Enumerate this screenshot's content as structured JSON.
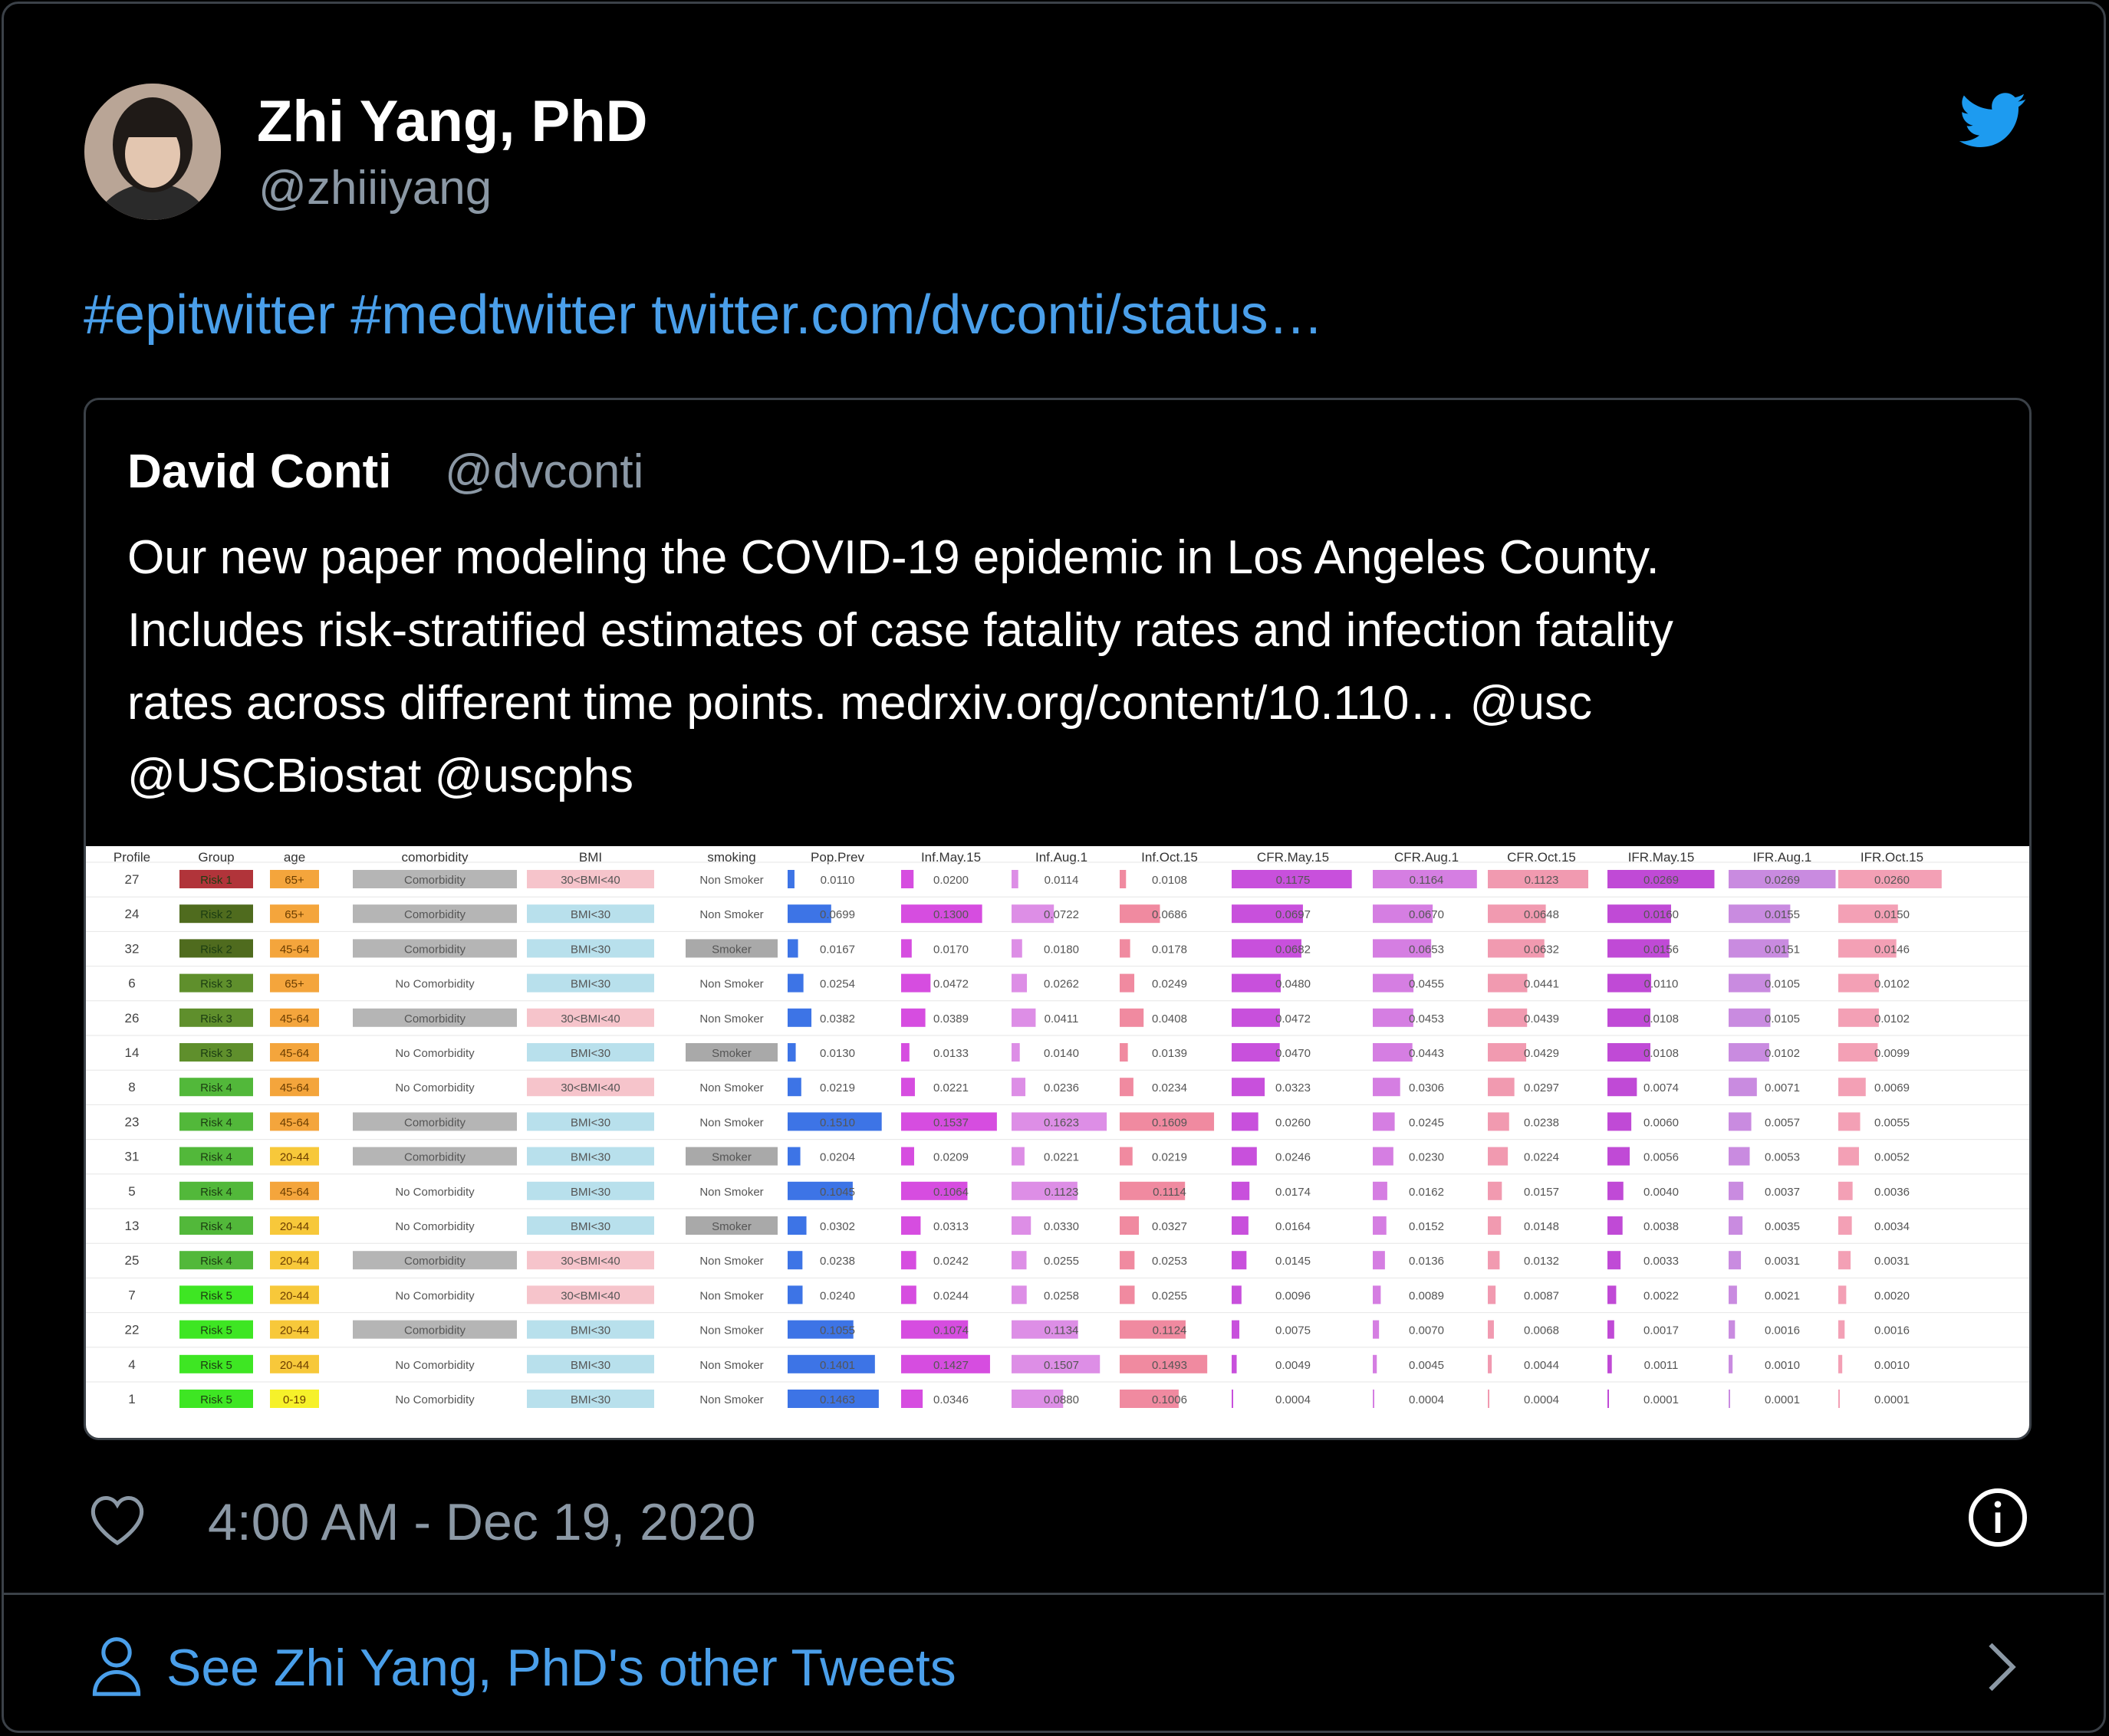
{
  "author": {
    "name": "Zhi Yang, PhD",
    "handle": "@zhiiiyang"
  },
  "tweet": {
    "text": "#epitwitter #medtwitter twitter.com/dvconti/status…"
  },
  "quote": {
    "name": "David Conti",
    "handle": "@dvconti",
    "lines": [
      "Our new paper modeling the COVID-19 epidemic in Los Angeles County.",
      "Includes risk-stratified estimates of case fatality rates and infection fatality",
      "rates across different time points. medrxiv.org/content/10.110…  @usc",
      "@USCBiostat @uscphs"
    ]
  },
  "table": {
    "headers": [
      "Profile",
      "Group",
      "age",
      "comorbidity",
      "BMI",
      "smoking",
      "Pop.Prev",
      "Inf.May.15",
      "Inf.Aug.1",
      "Inf.Oct.15",
      "CFR.May.15",
      "CFR.Aug.1",
      "CFR.Oct.15",
      "IFR.May.15",
      "IFR.Aug.1",
      "IFR.Oct.15"
    ],
    "rows": [
      [
        "27",
        "Risk 1",
        "65+",
        "Comorbidity",
        "30<BMI<40",
        "Non Smoker",
        "0.0110",
        "0.0200",
        "0.0114",
        "0.0108",
        "0.1175",
        "0.1164",
        "0.1123",
        "0.0269",
        "0.0269",
        "0.0260"
      ],
      [
        "24",
        "Risk 2",
        "65+",
        "Comorbidity",
        "BMI<30",
        "Non Smoker",
        "0.0699",
        "0.1300",
        "0.0722",
        "0.0686",
        "0.0697",
        "0.0670",
        "0.0648",
        "0.0160",
        "0.0155",
        "0.0150"
      ],
      [
        "32",
        "Risk 2",
        "45-64",
        "Comorbidity",
        "BMI<30",
        "Smoker",
        "0.0167",
        "0.0170",
        "0.0180",
        "0.0178",
        "0.0682",
        "0.0653",
        "0.0632",
        "0.0156",
        "0.0151",
        "0.0146"
      ],
      [
        "6",
        "Risk 3",
        "65+",
        "No Comorbidity",
        "BMI<30",
        "Non Smoker",
        "0.0254",
        "0.0472",
        "0.0262",
        "0.0249",
        "0.0480",
        "0.0455",
        "0.0441",
        "0.0110",
        "0.0105",
        "0.0102"
      ],
      [
        "26",
        "Risk 3",
        "45-64",
        "Comorbidity",
        "30<BMI<40",
        "Non Smoker",
        "0.0382",
        "0.0389",
        "0.0411",
        "0.0408",
        "0.0472",
        "0.0453",
        "0.0439",
        "0.0108",
        "0.0105",
        "0.0102"
      ],
      [
        "14",
        "Risk 3",
        "45-64",
        "No Comorbidity",
        "BMI<30",
        "Smoker",
        "0.0130",
        "0.0133",
        "0.0140",
        "0.0139",
        "0.0470",
        "0.0443",
        "0.0429",
        "0.0108",
        "0.0102",
        "0.0099"
      ],
      [
        "8",
        "Risk 4",
        "45-64",
        "No Comorbidity",
        "30<BMI<40",
        "Non Smoker",
        "0.0219",
        "0.0221",
        "0.0236",
        "0.0234",
        "0.0323",
        "0.0306",
        "0.0297",
        "0.0074",
        "0.0071",
        "0.0069"
      ],
      [
        "23",
        "Risk 4",
        "45-64",
        "Comorbidity",
        "BMI<30",
        "Non Smoker",
        "0.1510",
        "0.1537",
        "0.1623",
        "0.1609",
        "0.0260",
        "0.0245",
        "0.0238",
        "0.0060",
        "0.0057",
        "0.0055"
      ],
      [
        "31",
        "Risk 4",
        "20-44",
        "Comorbidity",
        "BMI<30",
        "Smoker",
        "0.0204",
        "0.0209",
        "0.0221",
        "0.0219",
        "0.0246",
        "0.0230",
        "0.0224",
        "0.0056",
        "0.0053",
        "0.0052"
      ],
      [
        "5",
        "Risk 4",
        "45-64",
        "No Comorbidity",
        "BMI<30",
        "Non Smoker",
        "0.1045",
        "0.1064",
        "0.1123",
        "0.1114",
        "0.0174",
        "0.0162",
        "0.0157",
        "0.0040",
        "0.0037",
        "0.0036"
      ],
      [
        "13",
        "Risk 4",
        "20-44",
        "No Comorbidity",
        "BMI<30",
        "Smoker",
        "0.0302",
        "0.0313",
        "0.0330",
        "0.0327",
        "0.0164",
        "0.0152",
        "0.0148",
        "0.0038",
        "0.0035",
        "0.0034"
      ],
      [
        "25",
        "Risk 4",
        "20-44",
        "Comorbidity",
        "30<BMI<40",
        "Non Smoker",
        "0.0238",
        "0.0242",
        "0.0255",
        "0.0253",
        "0.0145",
        "0.0136",
        "0.0132",
        "0.0033",
        "0.0031",
        "0.0031"
      ],
      [
        "7",
        "Risk 5",
        "20-44",
        "No Comorbidity",
        "30<BMI<40",
        "Non Smoker",
        "0.0240",
        "0.0244",
        "0.0258",
        "0.0255",
        "0.0096",
        "0.0089",
        "0.0087",
        "0.0022",
        "0.0021",
        "0.0020"
      ],
      [
        "22",
        "Risk 5",
        "20-44",
        "Comorbidity",
        "BMI<30",
        "Non Smoker",
        "0.1055",
        "0.1074",
        "0.1134",
        "0.1124",
        "0.0075",
        "0.0070",
        "0.0068",
        "0.0017",
        "0.0016",
        "0.0016"
      ],
      [
        "4",
        "Risk 5",
        "20-44",
        "No Comorbidity",
        "BMI<30",
        "Non Smoker",
        "0.1401",
        "0.1427",
        "0.1507",
        "0.1493",
        "0.0049",
        "0.0045",
        "0.0044",
        "0.0011",
        "0.0010",
        "0.0010"
      ],
      [
        "1",
        "Risk 5",
        "0-19",
        "No Comorbidity",
        "BMI<30",
        "Non Smoker",
        "0.1463",
        "0.0346",
        "0.0880",
        "0.1006",
        "0.0004",
        "0.0004",
        "0.0004",
        "0.0001",
        "0.0001",
        "0.0001"
      ]
    ],
    "group_colors": {
      "Risk 1": "#b1343a",
      "Risk 2": "#4f6b1e",
      "Risk 3": "#5f8f2c",
      "Risk 4": "#52b83a",
      "Risk 5": "#3ee623"
    },
    "age_colors": {
      "65+": "#f4a53c",
      "45-64": "#f4a53c",
      "20-44": "#f7c83a",
      "0-19": "#f6f12a"
    }
  },
  "footer": {
    "timestamp": "4:00 AM - Dec 19, 2020",
    "see_more": "See Zhi Yang, PhD's other Tweets"
  },
  "colors": {
    "link": "#4a9fea",
    "muted": "#8b98a5",
    "border": "#3b4148"
  },
  "icons": [
    "twitter-bird-icon",
    "heart-icon",
    "info-icon",
    "person-icon",
    "chevron-right-icon"
  ]
}
